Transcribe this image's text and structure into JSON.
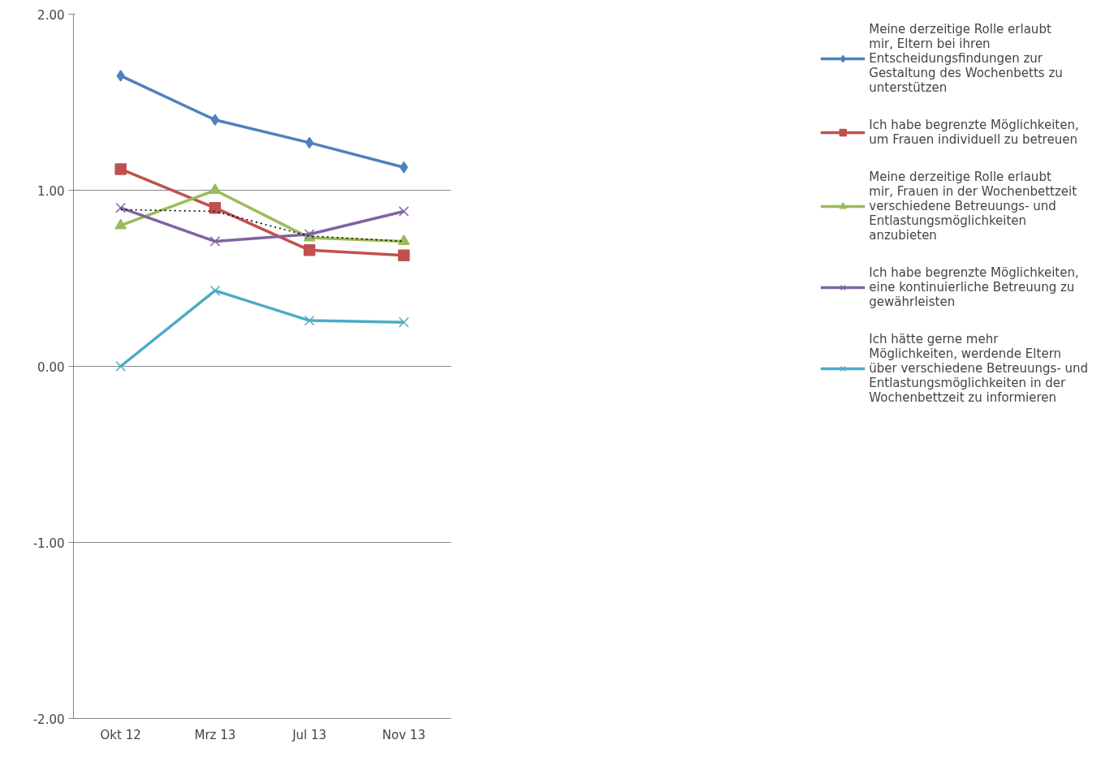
{
  "chart_data": {
    "type": "line",
    "categories": [
      "Okt 12",
      "Mrz 13",
      "Jul 13",
      "Nov 13"
    ],
    "series": [
      {
        "name": "Meine derzeitige Rolle erlaubt mir, Eltern bei ihren Entscheidungsfindungen zur Gestaltung des Wochenbetts zu unterstützen",
        "color": "#4f81bd",
        "marker": "diamond",
        "values": [
          1.65,
          1.4,
          1.27,
          1.13
        ]
      },
      {
        "name": "Ich habe begrenzte Möglichkeiten, um Frauen individuell zu betreuen",
        "color": "#c0504d",
        "marker": "square",
        "values": [
          1.12,
          0.9,
          0.66,
          0.63
        ]
      },
      {
        "name": "Meine derzeitige Rolle erlaubt mir, Frauen in der Wochenbettzeit verschiedene Betreuungs- und Entlastungsmöglichkeiten anzubieten",
        "color": "#9bbb59",
        "marker": "triangle",
        "values": [
          0.8,
          1.0,
          0.73,
          0.71
        ]
      },
      {
        "name": "Ich habe begrenzte Möglichkeiten, eine kontinuierliche Betreuung zu gewährleisten",
        "color": "#8064a2",
        "marker": "cross",
        "values": [
          0.9,
          0.71,
          0.75,
          0.88
        ]
      },
      {
        "name": "Ich hätte gerne mehr Möglichkeiten, werdende Eltern über verschiedene Betreuungs- und Entlastungsmöglichkeiten in der Wochenbettzeit zu informieren",
        "color": "#4bacc6",
        "marker": "cross",
        "values": [
          0.0,
          0.43,
          0.26,
          0.25
        ]
      },
      {
        "color": "#000000",
        "marker": "none",
        "line_style": "dotted",
        "values": [
          0.89,
          0.88,
          0.74,
          0.71
        ]
      }
    ],
    "ylim": [
      -2,
      2
    ],
    "yticks": [
      {
        "value": -2,
        "label": "-2.00"
      },
      {
        "value": -1,
        "label": "-1.00"
      },
      {
        "value": 0,
        "label": "0.00"
      },
      {
        "value": 1,
        "label": "1.00"
      },
      {
        "value": 2,
        "label": "2.00"
      }
    ],
    "grid": "y",
    "legend": "right",
    "line_style": "solid"
  }
}
